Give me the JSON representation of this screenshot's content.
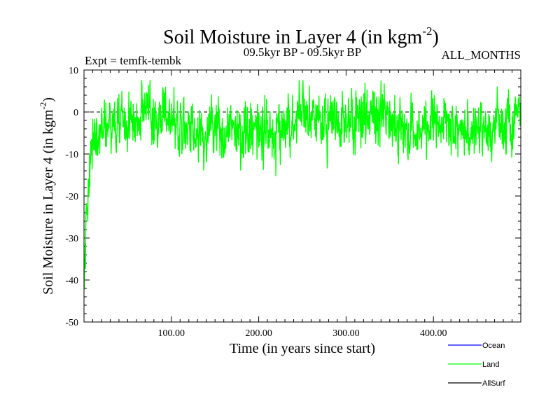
{
  "chart_data": {
    "type": "line",
    "title_main": "Soil Moisture in Layer 4 (in kgm",
    "title_sup": "-2",
    "title_close": ")",
    "subtitle_left": "Expt = temfk-tembk",
    "subtitle_center": "09.5kyr BP - 09.5kyr BP",
    "subtitle_right": "ALL_MONTHS",
    "xlabel": "Time (in years since start)",
    "ylabel_main": "Soil Moisture in Layer 4 (in kgm",
    "ylabel_sup": "-2",
    "ylabel_close": ")",
    "xlim": [
      0,
      500
    ],
    "ylim": [
      -50,
      10
    ],
    "xticks": [
      100,
      200,
      300,
      400
    ],
    "xtick_labels": [
      "100.00",
      "200.00",
      "300.00",
      "400.00"
    ],
    "yticks": [
      10,
      0,
      -10,
      -20,
      -30,
      -40,
      -50
    ],
    "ytick_labels": [
      "10",
      "0",
      "-10",
      "-20",
      "-30",
      "-40",
      "-50"
    ],
    "reference_line": {
      "y": 0,
      "style": "dashed"
    },
    "legend_position": "bottom-right",
    "series": [
      {
        "name": "Ocean",
        "color": "#0000ff",
        "values": []
      },
      {
        "name": "Land",
        "color": "#00ff00",
        "start_value": -42,
        "mean_value": -3,
        "variability": 5
      },
      {
        "name": "AllSurf",
        "color": "#000000",
        "values": []
      }
    ]
  }
}
